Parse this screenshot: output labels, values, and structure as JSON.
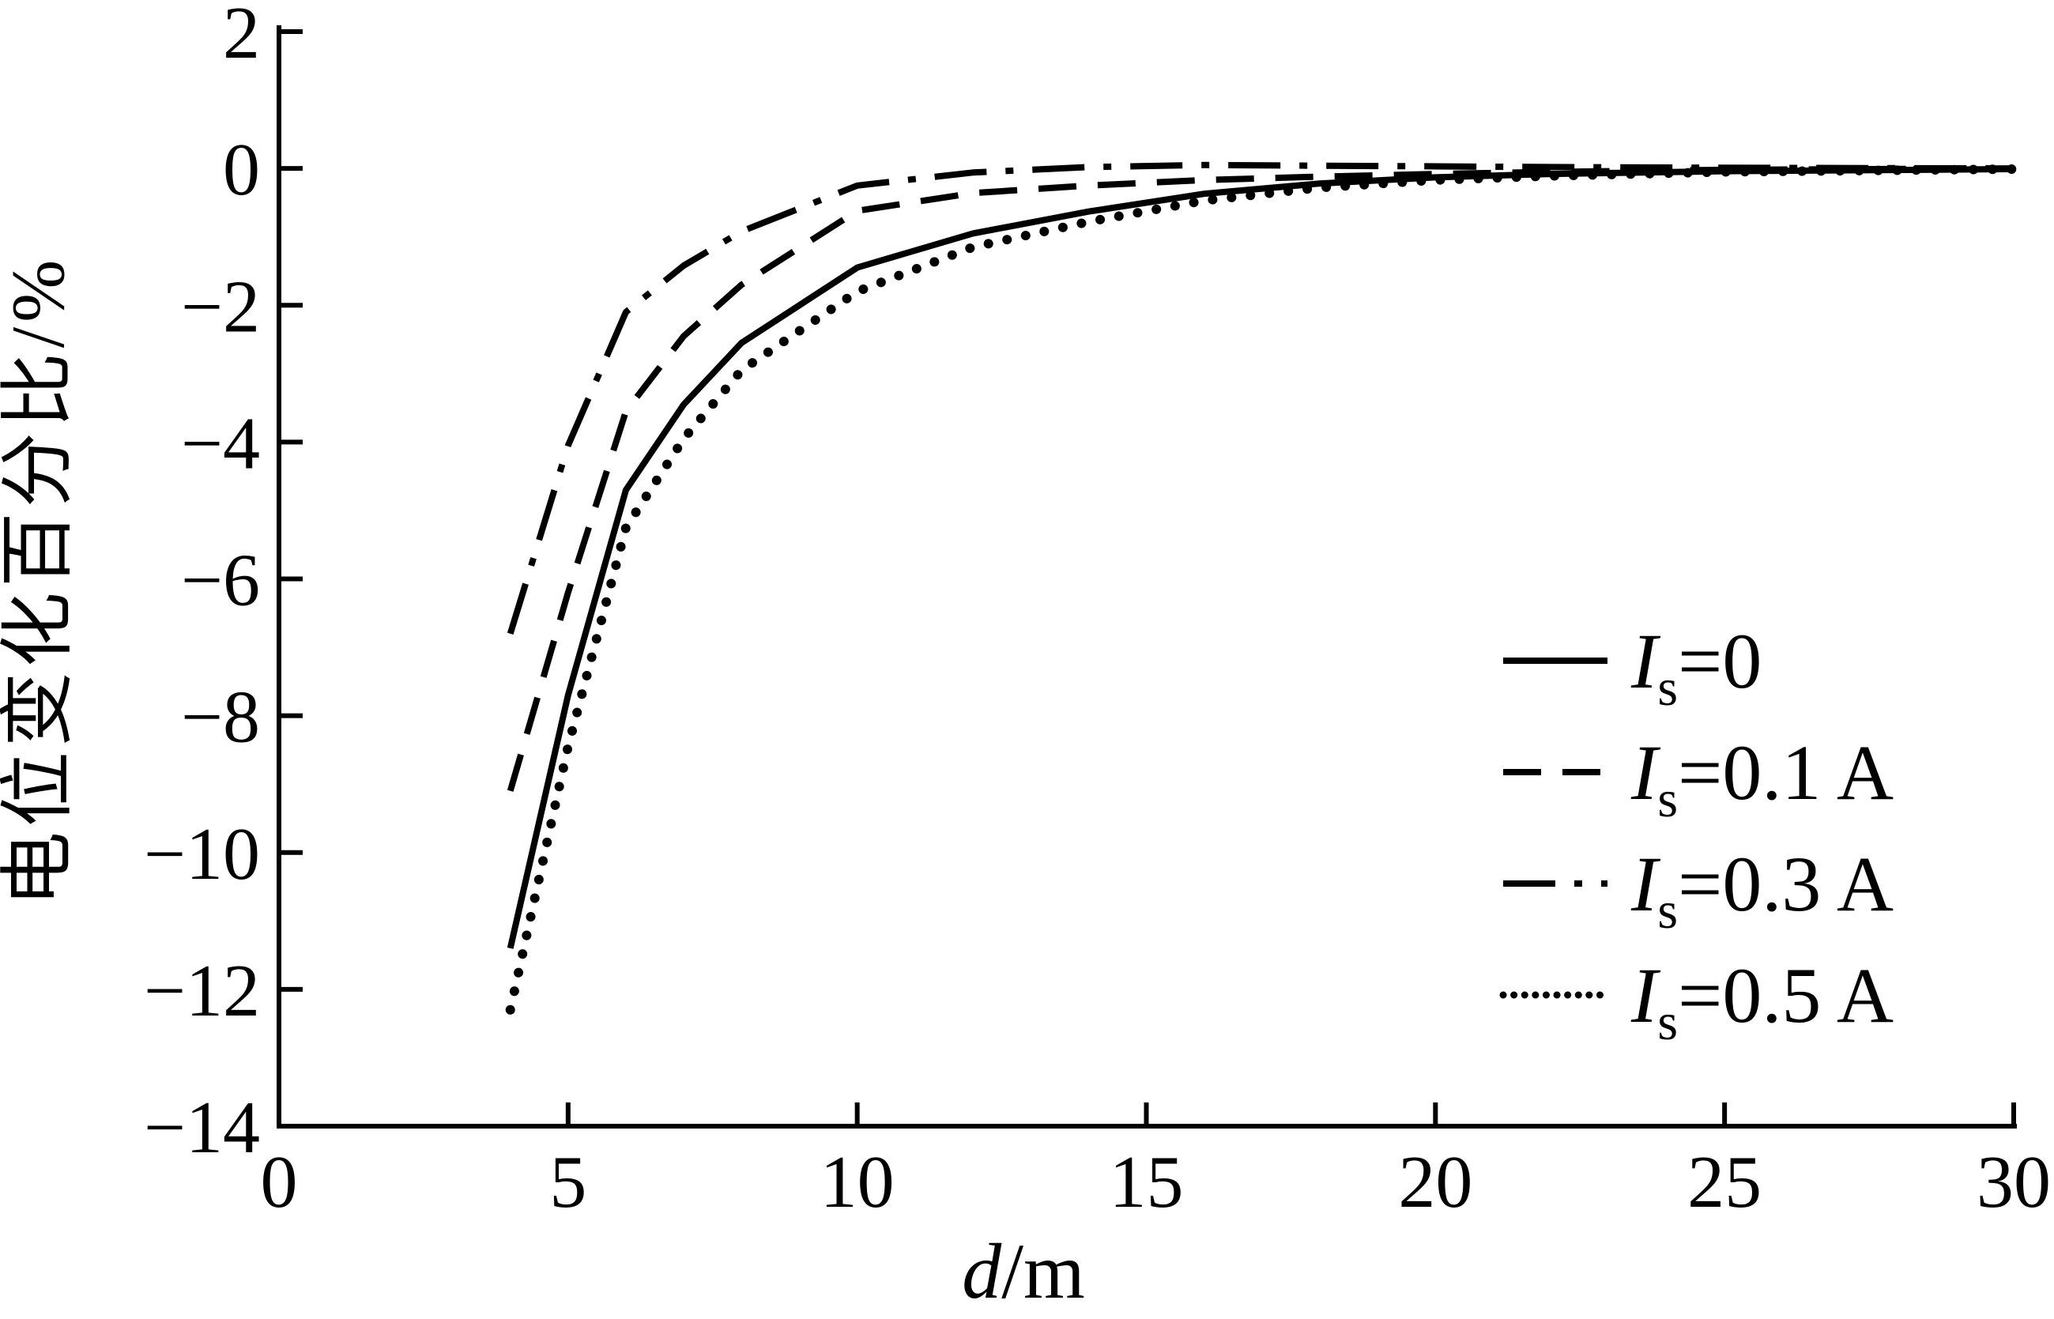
{
  "figure": {
    "background_color": "#ffffff",
    "ink_color": "#000000"
  },
  "chart_data": {
    "type": "line",
    "title": "",
    "xlabel_italic": "d",
    "xlabel_rest": "/m",
    "ylabel": "电位变化百分比/%",
    "xlim": [
      0,
      30
    ],
    "ylim": [
      -14,
      2
    ],
    "grid": false,
    "legend_position": "inside lower right",
    "xticks": [
      {
        "v": 0,
        "label": "0"
      },
      {
        "v": 5,
        "label": "5"
      },
      {
        "v": 10,
        "label": "10"
      },
      {
        "v": 15,
        "label": "15"
      },
      {
        "v": 20,
        "label": "20"
      },
      {
        "v": 25,
        "label": "25"
      },
      {
        "v": 30,
        "label": "30"
      }
    ],
    "yticks": [
      {
        "v": 2,
        "label": "2"
      },
      {
        "v": 0,
        "label": "0"
      },
      {
        "v": -2,
        "label": "−2"
      },
      {
        "v": -4,
        "label": "−4"
      },
      {
        "v": -6,
        "label": "−6"
      },
      {
        "v": -8,
        "label": "−8"
      },
      {
        "v": -10,
        "label": "−10"
      },
      {
        "v": -12,
        "label": "−12"
      },
      {
        "v": -14,
        "label": "−14"
      }
    ],
    "series": [
      {
        "name": "Is=0",
        "label_symbol": "I",
        "label_sub": "s",
        "label_rest": "=0",
        "style": "solid",
        "points": [
          [
            4,
            -11.4
          ],
          [
            5,
            -7.7
          ],
          [
            6,
            -4.7
          ],
          [
            7,
            -3.45
          ],
          [
            8,
            -2.55
          ],
          [
            10,
            -1.45
          ],
          [
            12,
            -0.95
          ],
          [
            14,
            -0.63
          ],
          [
            16,
            -0.37
          ],
          [
            18,
            -0.22
          ],
          [
            20,
            -0.13
          ],
          [
            22,
            -0.08
          ],
          [
            25,
            -0.04
          ],
          [
            30,
            -0.01
          ]
        ]
      },
      {
        "name": "Is=0.1 A",
        "label_symbol": "I",
        "label_sub": "s",
        "label_rest": "=0.1 A",
        "style": "dashed",
        "points": [
          [
            4,
            -9.1
          ],
          [
            5,
            -6.2
          ],
          [
            6,
            -3.55
          ],
          [
            7,
            -2.45
          ],
          [
            8,
            -1.7
          ],
          [
            10,
            -0.62
          ],
          [
            12,
            -0.36
          ],
          [
            14,
            -0.25
          ],
          [
            16,
            -0.17
          ],
          [
            18,
            -0.12
          ],
          [
            20,
            -0.08
          ],
          [
            22,
            -0.05
          ],
          [
            25,
            -0.02
          ],
          [
            30,
            0
          ]
        ]
      },
      {
        "name": "Is=0.3 A",
        "label_symbol": "I",
        "label_sub": "s",
        "label_rest": "=0.3 A",
        "style": "dashdot",
        "points": [
          [
            4,
            -6.8
          ],
          [
            5,
            -4.05
          ],
          [
            6,
            -2.1
          ],
          [
            7,
            -1.42
          ],
          [
            8,
            -0.92
          ],
          [
            10,
            -0.25
          ],
          [
            12,
            -0.06
          ],
          [
            14,
            0.02
          ],
          [
            16,
            0.05
          ],
          [
            18,
            0.04
          ],
          [
            20,
            0.03
          ],
          [
            22,
            0.02
          ],
          [
            25,
            0.01
          ],
          [
            30,
            0
          ]
        ]
      },
      {
        "name": "Is=0.5 A",
        "label_symbol": "I",
        "label_sub": "s",
        "label_rest": "=0.5 A",
        "style": "dotted",
        "points": [
          [
            4,
            -12.3
          ],
          [
            5,
            -8.45
          ],
          [
            6,
            -5.25
          ],
          [
            7,
            -3.95
          ],
          [
            8,
            -2.95
          ],
          [
            10,
            -1.8
          ],
          [
            12,
            -1.15
          ],
          [
            14,
            -0.78
          ],
          [
            16,
            -0.47
          ],
          [
            18,
            -0.28
          ],
          [
            20,
            -0.17
          ],
          [
            22,
            -0.11
          ],
          [
            25,
            -0.05
          ],
          [
            30,
            -0.01
          ]
        ]
      }
    ]
  }
}
